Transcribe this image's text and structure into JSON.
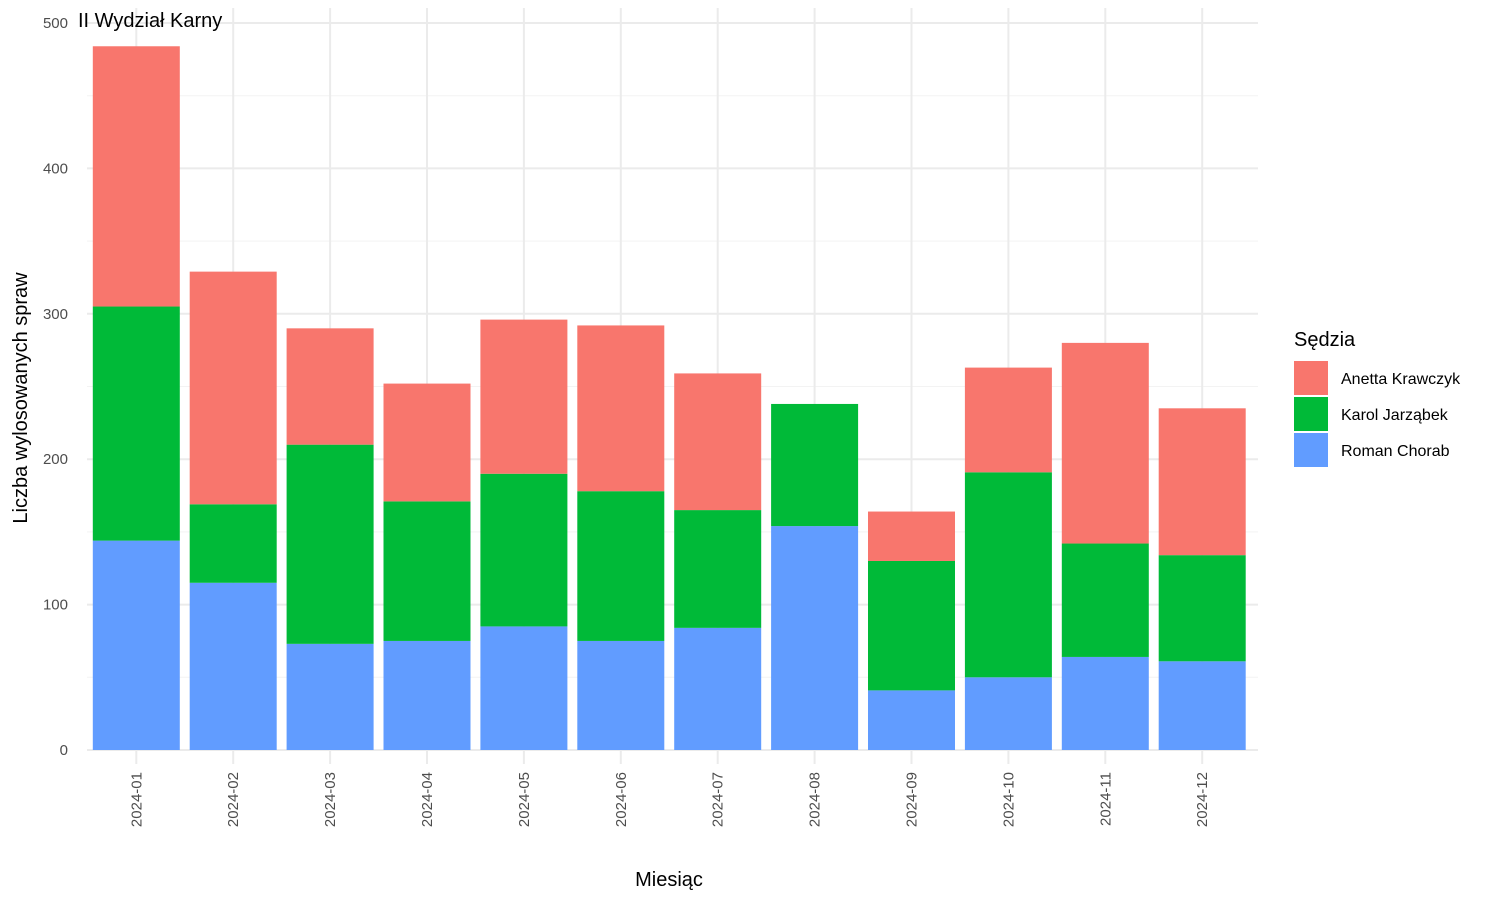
{
  "chart_data": {
    "type": "bar",
    "stacked": true,
    "title": "II Wydział Karny",
    "xlabel": "Miesiąc",
    "ylabel": "Liczba wylosowanych spraw",
    "ylim": [
      0,
      500
    ],
    "yticks": [
      0,
      100,
      200,
      300,
      400,
      500
    ],
    "grid": true,
    "legend_title": "Sędzia",
    "legend_position": "right",
    "categories": [
      "2024-01",
      "2024-02",
      "2024-03",
      "2024-04",
      "2024-05",
      "2024-06",
      "2024-07",
      "2024-08",
      "2024-09",
      "2024-10",
      "2024-11",
      "2024-12"
    ],
    "series": [
      {
        "name": "Roman Chorab",
        "color": "#619CFF",
        "values": [
          144,
          115,
          73,
          75,
          85,
          75,
          84,
          154,
          41,
          50,
          64,
          61
        ]
      },
      {
        "name": "Karol Jarząbek",
        "color": "#00BA38",
        "values": [
          161,
          54,
          137,
          96,
          105,
          103,
          81,
          84,
          89,
          141,
          78,
          73
        ]
      },
      {
        "name": "Anetta Krawczyk",
        "color": "#F8766D",
        "values": [
          179,
          160,
          80,
          81,
          106,
          114,
          94,
          0,
          34,
          72,
          138,
          101
        ]
      }
    ],
    "legend_order": [
      "Anetta Krawczyk",
      "Karol Jarząbek",
      "Roman Chorab"
    ]
  }
}
